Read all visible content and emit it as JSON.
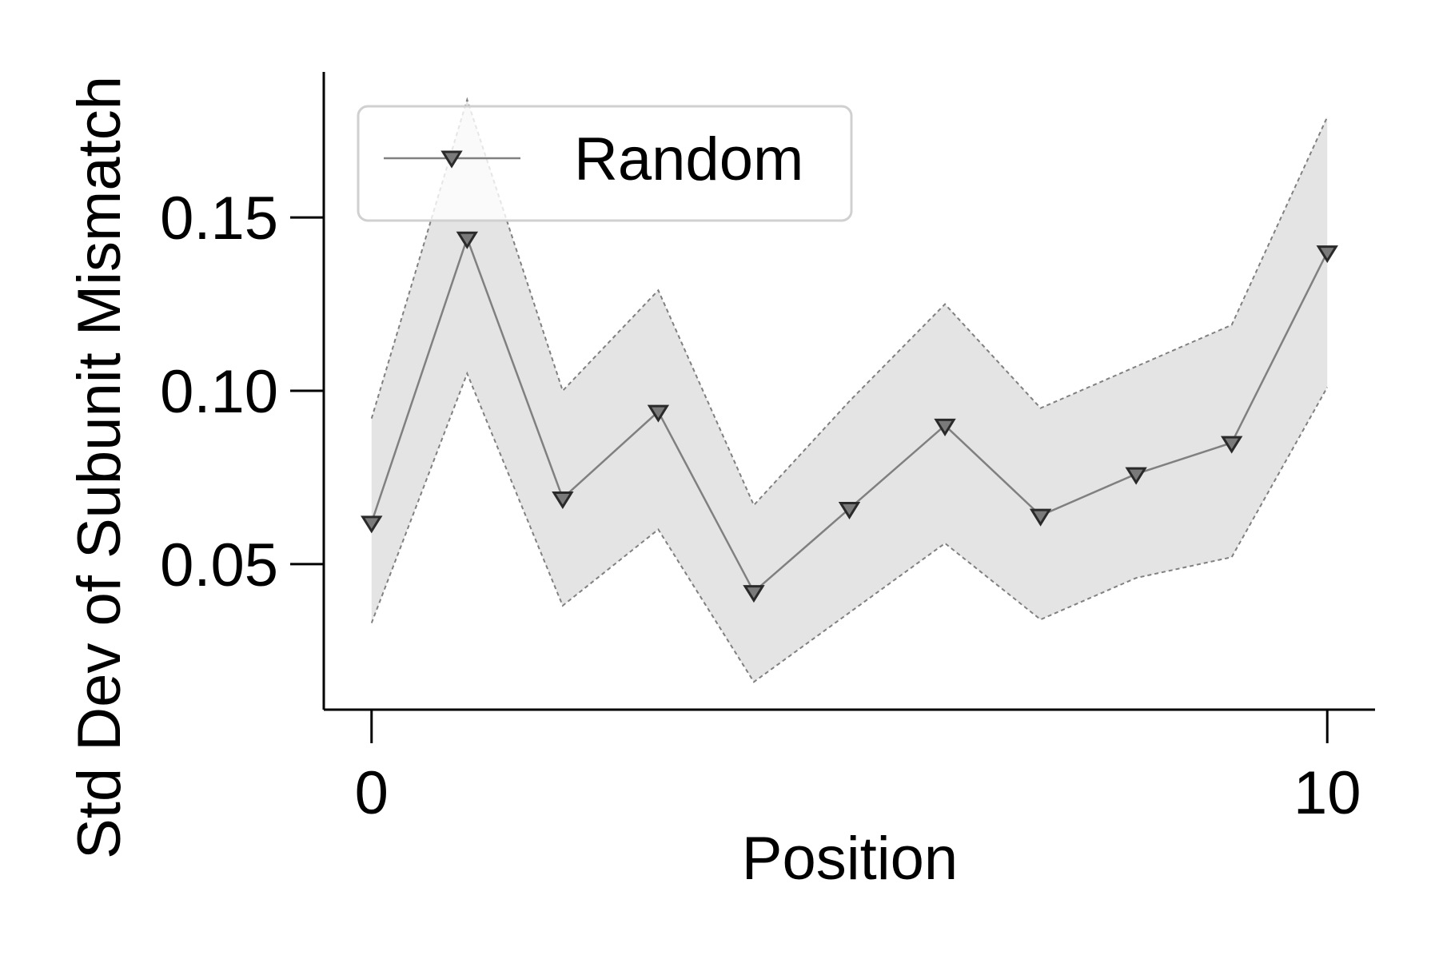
{
  "chart_data": {
    "type": "line",
    "xlabel": "Position",
    "ylabel": "Std Dev of Subunit Mismatch",
    "xlim": [
      -0.5,
      10.5
    ],
    "ylim": [
      0.008,
      0.192
    ],
    "xticks": [
      0,
      10
    ],
    "xtick_labels": [
      "0",
      "10"
    ],
    "yticks": [
      0.05,
      0.1,
      0.15
    ],
    "ytick_labels": [
      "0.05",
      "0.10",
      "0.15"
    ],
    "grid": false,
    "legend_position": "upper-left",
    "series": [
      {
        "name": "Random",
        "marker": "triangle-down",
        "color": "#808080",
        "marker_face": "#7a7a7a",
        "marker_edge": "#2a2a2a",
        "x": [
          0,
          1,
          2,
          3,
          4,
          5,
          6,
          7,
          8,
          9,
          10
        ],
        "y": [
          0.062,
          0.144,
          0.069,
          0.094,
          0.042,
          0.066,
          0.09,
          0.064,
          0.076,
          0.085,
          0.14
        ],
        "band_lower": [
          0.033,
          0.105,
          0.038,
          0.06,
          0.016,
          0.036,
          0.056,
          0.034,
          0.046,
          0.052,
          0.101
        ],
        "band_upper": [
          0.092,
          0.184,
          0.1,
          0.129,
          0.067,
          0.097,
          0.125,
          0.095,
          0.107,
          0.119,
          0.179
        ],
        "band_color": "#e4e4e4",
        "band_edge_color": "#808080"
      }
    ]
  }
}
